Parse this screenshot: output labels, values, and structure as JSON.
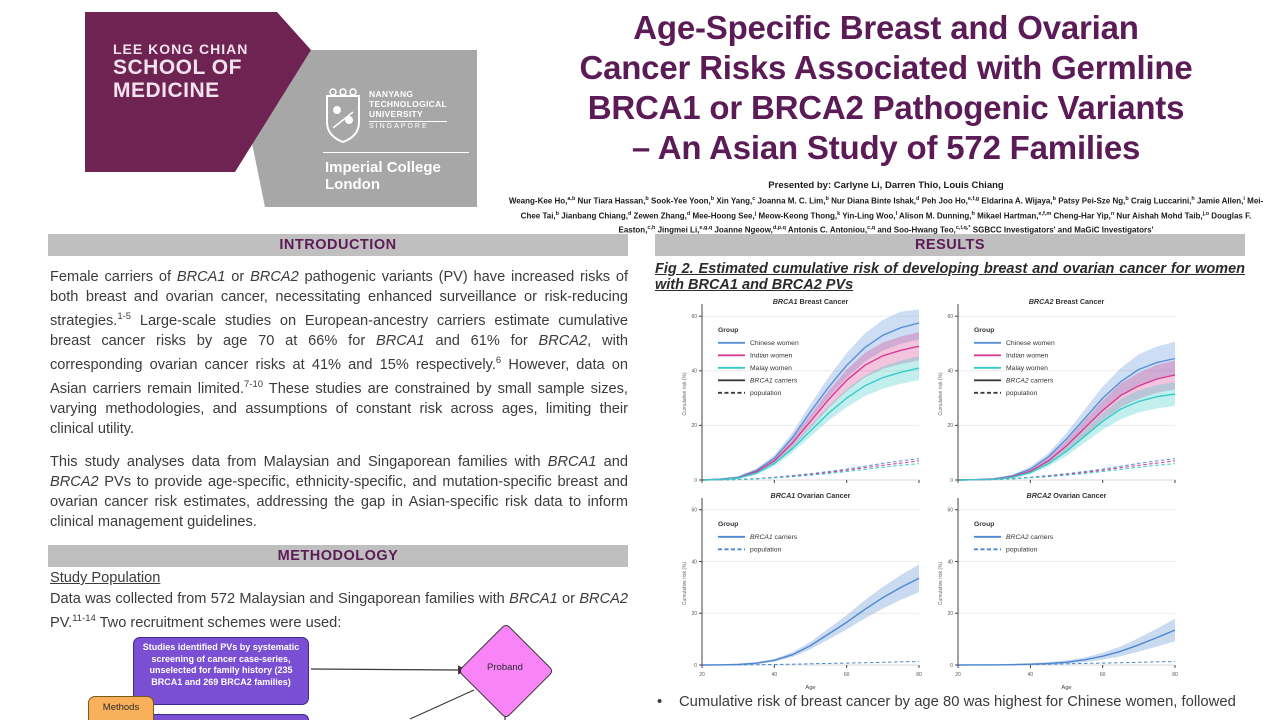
{
  "header": {
    "logo": {
      "school_lines": [
        "LEE KONG CHIAN",
        "SCHOOL OF",
        "MEDICINE"
      ],
      "ntu_lines": [
        "NANYANG",
        "TECHNOLOGICAL",
        "UNIVERSITY"
      ],
      "ntu_country": "SINGAPORE",
      "imperial_lines": [
        "Imperial College",
        "London"
      ]
    },
    "title_lines": [
      "Age-Specific Breast and Ovarian",
      "Cancer Risks Associated with Germline",
      "BRCA1 or BRCA2 Pathogenic Variants",
      "– An Asian Study of 572 Families"
    ],
    "presented_by": "Presented by: Carlyne Li, Darren Thio, Louis Chiang",
    "authors": "Weang-Kee Ho,^a,b^ Nur Tiara Hassan,^b^ Sook-Yee Yoon,^b^ Xin Yang,^c^ Joanna M. C. Lim,^b^ Nur Diana Binte Ishak,^d^ Peh Joo Ho,^e,f,g^ Eldarina A. Wijaya,^b^ Patsy Pei-Sze Ng,^b^ Craig Luccarini,^h^ Jamie Allen,^i^ Mei-Chee Tai,^b^ Jianbang Chiang,^d^ Zewen Zhang,^d^ Mee-Hoong See,^j^ Meow-Keong Thong,^k^ Yin-Ling Woo,^l^ Alison M. Dunning,^h^ Mikael Hartman,^e,f,m^ Cheng-Har Yip,^n^ Nur Aishah Mohd Taib,^j,o^ Douglas F. Easton,^c,h^ Jingmei Li,^e,g,q^ Joanne Ngeow,^d,p,q^ Antonis C. Antoniou,^c,q^ and Soo-Hwang Teo,^c,l,q,*^ SGBCC Investigators' and MaGiC Investigators'"
  },
  "left": {
    "intro": {
      "heading": "INTRODUCTION",
      "p1": "Female carriers of *BRCA1* or *BRCA2* pathogenic variants (PV) have increased risks of both breast and ovarian cancer, necessitating enhanced surveillance or risk-reducing strategies.^1-5^ Large-scale studies on European-ancestry carriers estimate cumulative breast cancer risks by age 70 at 66% for *BRCA1* and 61% for *BRCA2*, with corresponding ovarian cancer risks at 41% and 15% respectively.^6^ However, data on Asian carriers remain limited.^7-10^ These studies are constrained by small sample sizes, varying methodologies, and assumptions of constant risk across ages, limiting their clinical utility.",
      "p2": "This study analyses data from Malaysian and Singaporean families with *BRCA1* and *BRCA2* PVs to provide age-specific, ethnicity-specific, and mutation-specific breast and ovarian cancer risk estimates, addressing the gap in Asian-specific risk data to inform clinical management guidelines."
    },
    "methodology": {
      "heading": "METHODOLOGY",
      "subheading": "Study Population",
      "p1": "Data was collected from 572 Malaysian and Singaporean families with *BRCA1* or *BRCA2* PV.^11-14^ Two recruitment schemes were used:"
    },
    "flowchart": {
      "methods_label": "Methods",
      "box1": "Studies identified PVs by systematic screening of cancer case-series, unselected for family history **(235 BRCA1 and 269 BRCA2 families)**",
      "proband_label": "Proband"
    }
  },
  "right": {
    "heading": "RESULTS",
    "fig_caption": "Fig 2. Estimated cumulative risk of developing breast and ovarian cancer for women with BRCA1 and BRCA2 PVs",
    "bullet_dot": "•",
    "bullet": "Cumulative risk of breast cancer by age 80 was highest for Chinese women, followed"
  },
  "colors": {
    "accent_maroon": "#5b1b56",
    "bar_gray": "#bfbfbf",
    "logo_maroon": "#6e2352",
    "logo_gray": "#a7a7a7",
    "purple_box": "#7a4fd3",
    "orange_box": "#f8b05a",
    "pink_diamond": "#f884f8",
    "chart_blue": "#5a8fd8",
    "chart_magenta": "#d63b93",
    "chart_cyan": "#35cbc8",
    "chart_dark": "#3c3c3c",
    "ovarian_blue": "#4d86d1"
  },
  "chart_data": [
    {
      "type": "line",
      "title": "*BRCA1* Breast Cancer",
      "ylabel": "Cumulative risk (%)",
      "xlabel": null,
      "xlim": [
        20,
        80
      ],
      "ylim": [
        0,
        63
      ],
      "yticks": [
        0,
        20,
        40,
        60
      ],
      "xticks": [
        20,
        40,
        60,
        80
      ],
      "show_xlabels": false,
      "legend_title": "Group",
      "legend": [
        {
          "label": "Chinese women",
          "color": "#5a8fd8",
          "dash": false
        },
        {
          "label": "Indian women",
          "color": "#d63b93",
          "dash": false
        },
        {
          "label": "Malay women",
          "color": "#35cbc8",
          "dash": false
        },
        {
          "label": "*BRCA1* carriers",
          "color": "#3c3c3c",
          "dash": false
        },
        {
          "label": "population",
          "color": "#3c3c3c",
          "dash": true
        }
      ],
      "x": [
        20,
        25,
        30,
        35,
        40,
        45,
        50,
        55,
        60,
        65,
        70,
        75,
        80
      ],
      "series": [
        {
          "name": "Chinese carriers",
          "color": "#5a8fd8",
          "dash": false,
          "band": 0.1,
          "y": [
            0,
            0.3,
            1,
            3.5,
            8,
            15.5,
            25,
            34,
            42,
            48.5,
            53,
            55.8,
            57.5
          ]
        },
        {
          "name": "Indian carriers",
          "color": "#d63b93",
          "dash": false,
          "band": 0.1,
          "y": [
            0,
            0.2,
            0.8,
            3,
            7,
            13.5,
            21.5,
            29.5,
            36.5,
            42,
            45.5,
            47.5,
            49
          ]
        },
        {
          "name": "Malay carriers",
          "color": "#35cbc8",
          "dash": false,
          "band": 0.1,
          "y": [
            0,
            0.2,
            0.7,
            2.5,
            6,
            11.5,
            18,
            24.5,
            30,
            34.5,
            37.5,
            39.5,
            41
          ]
        },
        {
          "name": "Chinese population",
          "color": "#5a8fd8",
          "dash": true,
          "band": 0,
          "y": [
            0,
            0.05,
            0.2,
            0.5,
            1,
            1.6,
            2.3,
            3.1,
            4,
            5,
            6.1,
            7,
            7.8
          ]
        },
        {
          "name": "Indian population",
          "color": "#d63b93",
          "dash": true,
          "band": 0,
          "y": [
            0,
            0.05,
            0.18,
            0.45,
            0.9,
            1.4,
            2,
            2.75,
            3.6,
            4.5,
            5.4,
            6.2,
            7
          ]
        },
        {
          "name": "Malay population",
          "color": "#35cbc8",
          "dash": true,
          "band": 0,
          "y": [
            0,
            0.04,
            0.15,
            0.4,
            0.8,
            1.2,
            1.75,
            2.4,
            3.1,
            3.9,
            4.7,
            5.4,
            6
          ]
        }
      ]
    },
    {
      "type": "line",
      "title": "*BRCA2* Breast Cancer",
      "ylabel": "Cumulative risk (%)",
      "xlabel": null,
      "xlim": [
        20,
        80
      ],
      "ylim": [
        0,
        63
      ],
      "yticks": [
        0,
        20,
        40,
        60
      ],
      "xticks": [
        20,
        40,
        60,
        80
      ],
      "show_xlabels": false,
      "legend_title": "Group",
      "legend": [
        {
          "label": "Chinese women",
          "color": "#5a8fd8",
          "dash": false
        },
        {
          "label": "Indian women",
          "color": "#d63b93",
          "dash": false
        },
        {
          "label": "Malay women",
          "color": "#35cbc8",
          "dash": false
        },
        {
          "label": "*BRCA2* carriers",
          "color": "#3c3c3c",
          "dash": false
        },
        {
          "label": "population",
          "color": "#3c3c3c",
          "dash": true
        }
      ],
      "x": [
        20,
        25,
        30,
        35,
        40,
        45,
        50,
        55,
        60,
        65,
        70,
        75,
        80
      ],
      "series": [
        {
          "name": "Chinese carriers",
          "color": "#5a8fd8",
          "dash": false,
          "band": 0.13,
          "y": [
            0,
            0.1,
            0.4,
            1.5,
            4,
            8.5,
            15,
            22.5,
            30,
            36,
            40.5,
            43,
            44.5
          ]
        },
        {
          "name": "Indian carriers",
          "color": "#d63b93",
          "dash": false,
          "band": 0.13,
          "y": [
            0,
            0.1,
            0.3,
            1.2,
            3.2,
            7,
            12.5,
            19,
            25.5,
            31,
            34.5,
            37,
            38.5
          ]
        },
        {
          "name": "Malay carriers",
          "color": "#35cbc8",
          "dash": false,
          "band": 0.13,
          "y": [
            0,
            0.1,
            0.25,
            1,
            2.7,
            6,
            10.5,
            16,
            21.5,
            26,
            28.8,
            30.5,
            31.5
          ]
        },
        {
          "name": "Chinese population",
          "color": "#5a8fd8",
          "dash": true,
          "band": 0,
          "y": [
            0,
            0.05,
            0.2,
            0.5,
            1,
            1.6,
            2.3,
            3.1,
            4,
            5,
            6.1,
            7,
            7.8
          ]
        },
        {
          "name": "Indian population",
          "color": "#d63b93",
          "dash": true,
          "band": 0,
          "y": [
            0,
            0.05,
            0.18,
            0.45,
            0.9,
            1.4,
            2,
            2.75,
            3.6,
            4.5,
            5.4,
            6.2,
            7
          ]
        },
        {
          "name": "Malay population",
          "color": "#35cbc8",
          "dash": true,
          "band": 0,
          "y": [
            0,
            0.04,
            0.15,
            0.4,
            0.8,
            1.2,
            1.75,
            2.4,
            3.1,
            3.9,
            4.7,
            5.4,
            6
          ]
        }
      ]
    },
    {
      "type": "line",
      "title": "*BRCA1* Ovarian Cancer",
      "ylabel": "Cumulative risk (%)",
      "xlabel": "Age",
      "xlim": [
        20,
        80
      ],
      "ylim": [
        0,
        63
      ],
      "yticks": [
        0,
        20,
        40,
        60
      ],
      "xticks": [
        20,
        40,
        60,
        80
      ],
      "show_xlabels": true,
      "legend_title": "Group",
      "legend": [
        {
          "label": "*BRCA1* carriers",
          "color": "#4d86d1",
          "dash": false
        },
        {
          "label": "population",
          "color": "#4d86d1",
          "dash": true
        }
      ],
      "x": [
        20,
        25,
        30,
        35,
        40,
        45,
        50,
        55,
        60,
        65,
        70,
        75,
        80
      ],
      "series": [
        {
          "name": "BRCA1 carriers",
          "color": "#4d86d1",
          "dash": false,
          "band": 0.15,
          "y": [
            0,
            0.05,
            0.2,
            0.7,
            1.8,
            4,
            7.5,
            12,
            16.5,
            21.5,
            26,
            30,
            33.5
          ]
        },
        {
          "name": "population",
          "color": "#4d86d1",
          "dash": true,
          "band": 0,
          "y": [
            0,
            0.02,
            0.05,
            0.1,
            0.2,
            0.32,
            0.45,
            0.6,
            0.75,
            0.9,
            1.05,
            1.2,
            1.35
          ]
        }
      ]
    },
    {
      "type": "line",
      "title": "*BRCA2* Ovarian Cancer",
      "ylabel": "Cumulative risk (%)",
      "xlabel": "Age",
      "xlim": [
        20,
        80
      ],
      "ylim": [
        0,
        63
      ],
      "yticks": [
        0,
        20,
        40,
        60
      ],
      "xticks": [
        20,
        40,
        60,
        80
      ],
      "show_xlabels": true,
      "legend_title": "Group",
      "legend": [
        {
          "label": "*BRCA2* carriers",
          "color": "#4d86d1",
          "dash": false
        },
        {
          "label": "population",
          "color": "#4d86d1",
          "dash": true
        }
      ],
      "x": [
        20,
        25,
        30,
        35,
        40,
        45,
        50,
        55,
        60,
        65,
        70,
        75,
        80
      ],
      "series": [
        {
          "name": "BRCA2 carriers",
          "color": "#4d86d1",
          "dash": false,
          "band": 0.3,
          "y": [
            0,
            0.02,
            0.05,
            0.12,
            0.3,
            0.6,
            1.1,
            2,
            3.4,
            5.3,
            7.8,
            10.6,
            13.5
          ]
        },
        {
          "name": "population",
          "color": "#4d86d1",
          "dash": true,
          "band": 0,
          "y": [
            0,
            0.02,
            0.05,
            0.1,
            0.2,
            0.32,
            0.45,
            0.6,
            0.75,
            0.9,
            1.05,
            1.2,
            1.35
          ]
        }
      ]
    }
  ]
}
